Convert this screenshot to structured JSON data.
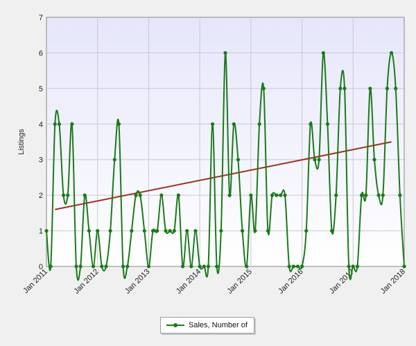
{
  "chart_data": {
    "type": "line",
    "ylabel": "Listings",
    "ylim": [
      0,
      7
    ],
    "yticks": [
      "0",
      "1",
      "2",
      "3",
      "4",
      "5",
      "6",
      "7"
    ],
    "xlabels": [
      "Jan 2011",
      "Jan 2012",
      "Jan 2013",
      "Jan 2014",
      "Jan 2015",
      "Jan 2016",
      "Jan 2017",
      "Jan 2018"
    ],
    "x_start": "Jan 2011",
    "x_end": "Jan 2018",
    "grid": true,
    "legend_position": "bottom-center",
    "series": [
      {
        "name": "Sales, Number of",
        "color": "#1a7a1a",
        "values": [
          1,
          0,
          4,
          4,
          2,
          2,
          4,
          0,
          0,
          2,
          1,
          0,
          1,
          0,
          0,
          1,
          3,
          4,
          0,
          0,
          1,
          2,
          2,
          1,
          0,
          1,
          1,
          2,
          1,
          1,
          1,
          2,
          0,
          1,
          0,
          1,
          0,
          0,
          0,
          4,
          0,
          1,
          6,
          2,
          4,
          3,
          1,
          0,
          2,
          1,
          4,
          5,
          1,
          2,
          2,
          2,
          2,
          0,
          0,
          0,
          0,
          1,
          4,
          3,
          3,
          6,
          4,
          1,
          2,
          5,
          5,
          0,
          0,
          0,
          2,
          2,
          5,
          3,
          2,
          2,
          5,
          6,
          5,
          2,
          0
        ]
      }
    ],
    "trend_line": {
      "color": "#a03020",
      "start_value": 1.6,
      "end_value": 3.5
    }
  }
}
